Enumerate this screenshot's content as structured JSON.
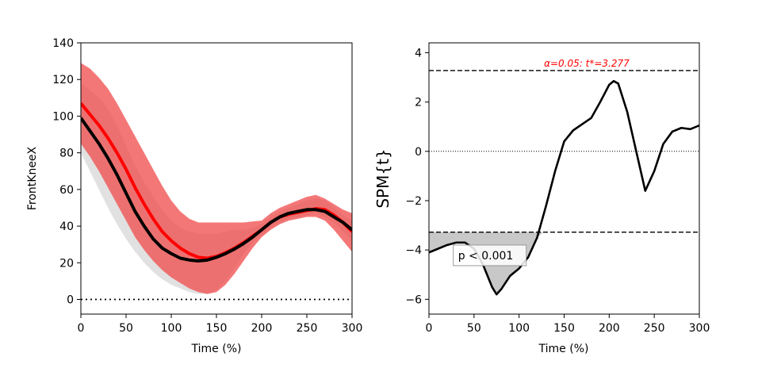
{
  "colors": {
    "axis": "#000000",
    "mean_black": "#000000",
    "mean_red": "#ff0000",
    "band_gray": "#d9d9d9",
    "band_red": "#f04a4a",
    "threshold_text": "#ff0000",
    "cluster_fill": "#c8c8c8"
  },
  "chart_data": [
    {
      "type": "line",
      "title": "",
      "xlabel": "Time (%)",
      "ylabel": "FrontKneeX",
      "xlim": [
        0,
        300
      ],
      "ylim": [
        -8,
        140
      ],
      "xticks": [
        0,
        50,
        100,
        150,
        200,
        250,
        300
      ],
      "yticks": [
        0,
        20,
        40,
        60,
        80,
        100,
        120,
        140
      ],
      "grid": false,
      "reference_line": {
        "y": 0,
        "style": "dotted"
      },
      "series": [
        {
          "color": "black",
          "x": [
            0,
            10,
            20,
            30,
            40,
            50,
            60,
            70,
            80,
            90,
            100,
            110,
            120,
            130,
            140,
            150,
            160,
            170,
            180,
            190,
            200,
            210,
            220,
            230,
            240,
            250,
            260,
            270,
            280,
            290,
            300
          ],
          "mean": [
            99,
            92,
            85,
            77,
            68,
            58,
            48,
            40,
            33,
            28,
            25,
            22.5,
            21.5,
            21,
            21.5,
            23,
            25,
            27.5,
            30.5,
            34,
            38,
            42,
            45,
            47,
            48,
            49,
            49,
            48,
            45,
            42,
            38
          ],
          "lower": [
            80,
            70,
            60,
            50,
            41,
            33,
            26,
            20,
            15,
            11,
            8,
            6,
            4,
            3,
            3,
            5,
            10,
            17,
            25,
            31,
            35,
            39,
            42,
            44,
            45,
            46,
            47,
            45,
            42,
            37,
            32
          ],
          "upper": [
            118,
            114,
            110,
            104,
            95,
            84,
            73,
            64,
            56,
            49,
            43,
            39,
            37,
            36,
            36,
            36,
            37,
            38,
            38,
            39,
            41,
            45,
            48,
            50,
            52,
            54,
            55,
            54,
            50,
            46,
            43
          ]
        },
        {
          "color": "red",
          "x": [
            0,
            10,
            20,
            30,
            40,
            50,
            60,
            70,
            80,
            90,
            100,
            110,
            120,
            130,
            140,
            150,
            160,
            170,
            180,
            190,
            200,
            210,
            220,
            230,
            240,
            250,
            260,
            270,
            280,
            290,
            300
          ],
          "mean": [
            107,
            101,
            95,
            88,
            80,
            71,
            61,
            52,
            44,
            37,
            32,
            28,
            25,
            23,
            22.5,
            23.5,
            25.5,
            28,
            31,
            34.5,
            38,
            42,
            45,
            46.5,
            47.5,
            48.5,
            49.5,
            49,
            46,
            42,
            37
          ],
          "lower": [
            85,
            78,
            70,
            61,
            52,
            43,
            34,
            27,
            21,
            16,
            12,
            9,
            6,
            4,
            3,
            4,
            8,
            14,
            21,
            28,
            34,
            38,
            41,
            43,
            44,
            45,
            45,
            43,
            38,
            32,
            26
          ],
          "upper": [
            129,
            126,
            121,
            115,
            107,
            98,
            89,
            80,
            71,
            62,
            54,
            48,
            44,
            42,
            42,
            42,
            42,
            42,
            42,
            42.5,
            43,
            47,
            50,
            52,
            54,
            56,
            57,
            55,
            52,
            49,
            47
          ]
        }
      ]
    },
    {
      "type": "line",
      "title": "",
      "xlabel": "Time (%)",
      "ylabel": "SPM{t}",
      "xlim": [
        0,
        300
      ],
      "ylim": [
        -6.6,
        4.4
      ],
      "xticks": [
        0,
        50,
        100,
        150,
        200,
        250,
        300
      ],
      "yticks": [
        -6,
        -4,
        -2,
        0,
        2,
        4
      ],
      "grid": false,
      "threshold": {
        "upper": 3.277,
        "lower": -3.277,
        "label": "α=0.05:  t*=3.277"
      },
      "zero_line": {
        "y": 0,
        "style": "dotted"
      },
      "cluster": {
        "x_start": 0,
        "x_end": 127,
        "label": "p < 0.001"
      },
      "series": [
        {
          "color": "black",
          "x": [
            0,
            10,
            20,
            30,
            40,
            50,
            60,
            70,
            75,
            80,
            90,
            100,
            110,
            120,
            130,
            140,
            150,
            160,
            170,
            180,
            190,
            200,
            205,
            210,
            220,
            230,
            240,
            250,
            260,
            270,
            280,
            290,
            300
          ],
          "values": [
            -4.1,
            -3.95,
            -3.8,
            -3.7,
            -3.7,
            -3.95,
            -4.6,
            -5.5,
            -5.8,
            -5.6,
            -5.05,
            -4.75,
            -4.3,
            -3.5,
            -2.2,
            -0.8,
            0.4,
            0.85,
            1.1,
            1.35,
            2.0,
            2.7,
            2.85,
            2.75,
            1.6,
            0.0,
            -1.6,
            -0.8,
            0.3,
            0.8,
            0.95,
            0.9,
            1.05
          ]
        }
      ]
    }
  ]
}
